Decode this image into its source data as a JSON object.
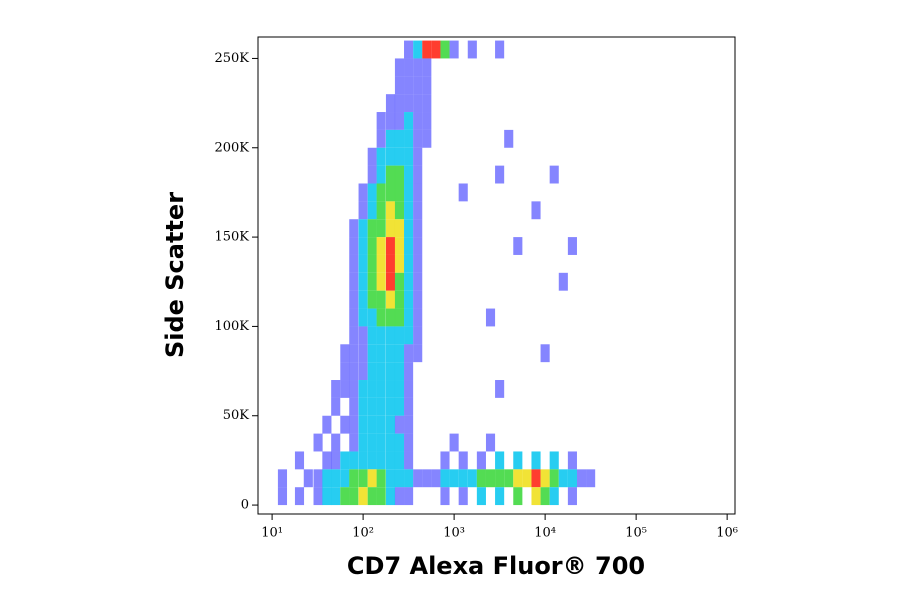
{
  "chart_data": {
    "type": "density",
    "x_label": "CD7 Alexa Fluor® 700",
    "y_label": "Side Scatter",
    "xscale": "log",
    "xlim": [
      7,
      1220000
    ],
    "ylim": [
      -5000,
      262000
    ],
    "xticks": [
      {
        "value": 10,
        "label": "10¹"
      },
      {
        "value": 100,
        "label": "10²"
      },
      {
        "value": 1000,
        "label": "10³"
      },
      {
        "value": 10000,
        "label": "10⁴"
      },
      {
        "value": 100000,
        "label": "10⁵"
      },
      {
        "value": 1000000,
        "label": "10⁶"
      }
    ],
    "yticks": [
      0,
      {
        "value": 50000,
        "label": "50K"
      },
      {
        "value": 100000,
        "label": "100K"
      },
      {
        "value": 150000,
        "label": "150K"
      },
      {
        "value": 200000,
        "label": "200K"
      },
      {
        "value": 250000,
        "label": "250K"
      }
    ],
    "colors": [
      "#2020ff",
      "#10c8f0",
      "#40d840",
      "#f0e020",
      "#ff2818"
    ],
    "cells": [
      [
        316,
        255000,
        1
      ],
      [
        398,
        255000,
        2
      ],
      [
        501,
        255000,
        5
      ],
      [
        631,
        255000,
        5
      ],
      [
        794,
        255000,
        3
      ],
      [
        1000,
        255000,
        1
      ],
      [
        1585,
        255000,
        1
      ],
      [
        3162,
        255000,
        1
      ],
      [
        251,
        245000,
        1
      ],
      [
        316,
        245000,
        1
      ],
      [
        398,
        245000,
        1
      ],
      [
        501,
        245000,
        1
      ],
      [
        251,
        235000,
        1
      ],
      [
        316,
        235000,
        1
      ],
      [
        398,
        235000,
        1
      ],
      [
        501,
        235000,
        1
      ],
      [
        200,
        225000,
        1
      ],
      [
        251,
        225000,
        1
      ],
      [
        316,
        225000,
        1
      ],
      [
        398,
        225000,
        1
      ],
      [
        501,
        225000,
        1
      ],
      [
        158,
        215000,
        1
      ],
      [
        200,
        215000,
        1
      ],
      [
        251,
        215000,
        1
      ],
      [
        316,
        215000,
        2
      ],
      [
        398,
        215000,
        1
      ],
      [
        501,
        215000,
        1
      ],
      [
        158,
        205000,
        1
      ],
      [
        200,
        205000,
        2
      ],
      [
        251,
        205000,
        2
      ],
      [
        316,
        205000,
        2
      ],
      [
        398,
        205000,
        1
      ],
      [
        501,
        205000,
        1
      ],
      [
        3981,
        205000,
        1
      ],
      [
        126,
        195000,
        1
      ],
      [
        158,
        195000,
        2
      ],
      [
        200,
        195000,
        2
      ],
      [
        251,
        195000,
        2
      ],
      [
        316,
        195000,
        2
      ],
      [
        398,
        195000,
        1
      ],
      [
        126,
        185000,
        1
      ],
      [
        158,
        185000,
        2
      ],
      [
        200,
        185000,
        3
      ],
      [
        251,
        185000,
        3
      ],
      [
        316,
        185000,
        2
      ],
      [
        398,
        185000,
        1
      ],
      [
        3162,
        185000,
        1
      ],
      [
        12589,
        185000,
        1
      ],
      [
        100,
        175000,
        1
      ],
      [
        126,
        175000,
        2
      ],
      [
        158,
        175000,
        3
      ],
      [
        200,
        175000,
        3
      ],
      [
        251,
        175000,
        3
      ],
      [
        316,
        175000,
        2
      ],
      [
        398,
        175000,
        1
      ],
      [
        1259,
        175000,
        1
      ],
      [
        100,
        165000,
        1
      ],
      [
        126,
        165000,
        2
      ],
      [
        158,
        165000,
        3
      ],
      [
        200,
        165000,
        4
      ],
      [
        251,
        165000,
        3
      ],
      [
        316,
        165000,
        2
      ],
      [
        398,
        165000,
        1
      ],
      [
        7943,
        165000,
        1
      ],
      [
        79,
        155000,
        1
      ],
      [
        100,
        155000,
        2
      ],
      [
        126,
        155000,
        3
      ],
      [
        158,
        155000,
        3
      ],
      [
        200,
        155000,
        4
      ],
      [
        251,
        155000,
        4
      ],
      [
        316,
        155000,
        2
      ],
      [
        398,
        155000,
        1
      ],
      [
        79,
        145000,
        1
      ],
      [
        100,
        145000,
        2
      ],
      [
        126,
        145000,
        3
      ],
      [
        158,
        145000,
        4
      ],
      [
        200,
        145000,
        5
      ],
      [
        251,
        145000,
        4
      ],
      [
        316,
        145000,
        2
      ],
      [
        398,
        145000,
        1
      ],
      [
        5012,
        145000,
        1
      ],
      [
        19953,
        145000,
        1
      ],
      [
        79,
        135000,
        1
      ],
      [
        100,
        135000,
        2
      ],
      [
        126,
        135000,
        3
      ],
      [
        158,
        135000,
        4
      ],
      [
        200,
        135000,
        5
      ],
      [
        251,
        135000,
        4
      ],
      [
        316,
        135000,
        2
      ],
      [
        398,
        135000,
        1
      ],
      [
        79,
        125000,
        1
      ],
      [
        100,
        125000,
        2
      ],
      [
        126,
        125000,
        3
      ],
      [
        158,
        125000,
        4
      ],
      [
        200,
        125000,
        5
      ],
      [
        251,
        125000,
        3
      ],
      [
        316,
        125000,
        2
      ],
      [
        398,
        125000,
        1
      ],
      [
        15849,
        125000,
        1
      ],
      [
        79,
        115000,
        1
      ],
      [
        100,
        115000,
        2
      ],
      [
        126,
        115000,
        3
      ],
      [
        158,
        115000,
        3
      ],
      [
        200,
        115000,
        4
      ],
      [
        251,
        115000,
        3
      ],
      [
        316,
        115000,
        2
      ],
      [
        398,
        115000,
        1
      ],
      [
        79,
        105000,
        1
      ],
      [
        100,
        105000,
        2
      ],
      [
        126,
        105000,
        2
      ],
      [
        158,
        105000,
        3
      ],
      [
        200,
        105000,
        3
      ],
      [
        251,
        105000,
        3
      ],
      [
        316,
        105000,
        2
      ],
      [
        398,
        105000,
        1
      ],
      [
        2512,
        105000,
        1
      ],
      [
        79,
        95000,
        1
      ],
      [
        100,
        95000,
        1
      ],
      [
        126,
        95000,
        2
      ],
      [
        158,
        95000,
        2
      ],
      [
        200,
        95000,
        2
      ],
      [
        251,
        95000,
        2
      ],
      [
        316,
        95000,
        2
      ],
      [
        398,
        95000,
        1
      ],
      [
        63,
        85000,
        1
      ],
      [
        79,
        85000,
        1
      ],
      [
        100,
        85000,
        1
      ],
      [
        126,
        85000,
        2
      ],
      [
        158,
        85000,
        2
      ],
      [
        200,
        85000,
        2
      ],
      [
        251,
        85000,
        2
      ],
      [
        316,
        85000,
        1
      ],
      [
        398,
        85000,
        1
      ],
      [
        10000,
        85000,
        1
      ],
      [
        63,
        75000,
        1
      ],
      [
        79,
        75000,
        1
      ],
      [
        100,
        75000,
        1
      ],
      [
        126,
        75000,
        2
      ],
      [
        158,
        75000,
        2
      ],
      [
        200,
        75000,
        2
      ],
      [
        251,
        75000,
        2
      ],
      [
        316,
        75000,
        1
      ],
      [
        50,
        65000,
        1
      ],
      [
        63,
        65000,
        1
      ],
      [
        79,
        65000,
        1
      ],
      [
        100,
        65000,
        2
      ],
      [
        126,
        65000,
        2
      ],
      [
        158,
        65000,
        2
      ],
      [
        200,
        65000,
        2
      ],
      [
        251,
        65000,
        2
      ],
      [
        316,
        65000,
        1
      ],
      [
        3162,
        65000,
        1
      ],
      [
        50,
        55000,
        1
      ],
      [
        79,
        55000,
        1
      ],
      [
        100,
        55000,
        2
      ],
      [
        126,
        55000,
        2
      ],
      [
        158,
        55000,
        2
      ],
      [
        200,
        55000,
        2
      ],
      [
        251,
        55000,
        2
      ],
      [
        316,
        55000,
        1
      ],
      [
        40,
        45000,
        1
      ],
      [
        63,
        45000,
        1
      ],
      [
        79,
        45000,
        1
      ],
      [
        100,
        45000,
        2
      ],
      [
        126,
        45000,
        2
      ],
      [
        158,
        45000,
        2
      ],
      [
        200,
        45000,
        2
      ],
      [
        251,
        45000,
        1
      ],
      [
        316,
        45000,
        1
      ],
      [
        32,
        35000,
        1
      ],
      [
        50,
        35000,
        1
      ],
      [
        79,
        35000,
        1
      ],
      [
        100,
        35000,
        2
      ],
      [
        126,
        35000,
        2
      ],
      [
        158,
        35000,
        2
      ],
      [
        200,
        35000,
        2
      ],
      [
        251,
        35000,
        2
      ],
      [
        316,
        35000,
        1
      ],
      [
        1000,
        35000,
        1
      ],
      [
        2512,
        35000,
        1
      ],
      [
        20,
        25000,
        1
      ],
      [
        40,
        25000,
        1
      ],
      [
        50,
        25000,
        1
      ],
      [
        63,
        25000,
        2
      ],
      [
        79,
        25000,
        2
      ],
      [
        100,
        25000,
        2
      ],
      [
        126,
        25000,
        2
      ],
      [
        158,
        25000,
        2
      ],
      [
        200,
        25000,
        2
      ],
      [
        251,
        25000,
        2
      ],
      [
        316,
        25000,
        1
      ],
      [
        794,
        25000,
        1
      ],
      [
        1259,
        25000,
        1
      ],
      [
        1995,
        25000,
        1
      ],
      [
        3162,
        25000,
        2
      ],
      [
        5012,
        25000,
        2
      ],
      [
        7943,
        25000,
        2
      ],
      [
        12589,
        25000,
        2
      ],
      [
        19953,
        25000,
        1
      ],
      [
        13,
        15000,
        1
      ],
      [
        25,
        15000,
        1
      ],
      [
        32,
        15000,
        1
      ],
      [
        40,
        15000,
        2
      ],
      [
        50,
        15000,
        2
      ],
      [
        63,
        15000,
        2
      ],
      [
        79,
        15000,
        3
      ],
      [
        100,
        15000,
        3
      ],
      [
        126,
        15000,
        4
      ],
      [
        158,
        15000,
        3
      ],
      [
        200,
        15000,
        2
      ],
      [
        251,
        15000,
        2
      ],
      [
        316,
        15000,
        2
      ],
      [
        398,
        15000,
        1
      ],
      [
        501,
        15000,
        1
      ],
      [
        631,
        15000,
        1
      ],
      [
        794,
        15000,
        2
      ],
      [
        1000,
        15000,
        2
      ],
      [
        1259,
        15000,
        2
      ],
      [
        1585,
        15000,
        2
      ],
      [
        1995,
        15000,
        3
      ],
      [
        2512,
        15000,
        3
      ],
      [
        3162,
        15000,
        3
      ],
      [
        3981,
        15000,
        3
      ],
      [
        5012,
        15000,
        4
      ],
      [
        6310,
        15000,
        4
      ],
      [
        7943,
        15000,
        5
      ],
      [
        10000,
        15000,
        4
      ],
      [
        12589,
        15000,
        3
      ],
      [
        15849,
        15000,
        2
      ],
      [
        19953,
        15000,
        2
      ],
      [
        25119,
        15000,
        1
      ],
      [
        31623,
        15000,
        1
      ],
      [
        13,
        5000,
        1
      ],
      [
        20,
        5000,
        1
      ],
      [
        32,
        5000,
        1
      ],
      [
        40,
        5000,
        2
      ],
      [
        50,
        5000,
        2
      ],
      [
        63,
        5000,
        3
      ],
      [
        79,
        5000,
        3
      ],
      [
        100,
        5000,
        4
      ],
      [
        126,
        5000,
        3
      ],
      [
        158,
        5000,
        3
      ],
      [
        200,
        5000,
        2
      ],
      [
        251,
        5000,
        1
      ],
      [
        316,
        5000,
        1
      ],
      [
        794,
        5000,
        1
      ],
      [
        1259,
        5000,
        1
      ],
      [
        1995,
        5000,
        2
      ],
      [
        3162,
        5000,
        2
      ],
      [
        5012,
        5000,
        3
      ],
      [
        7943,
        5000,
        4
      ],
      [
        10000,
        5000,
        3
      ],
      [
        12589,
        5000,
        2
      ],
      [
        19953,
        5000,
        1
      ]
    ]
  }
}
